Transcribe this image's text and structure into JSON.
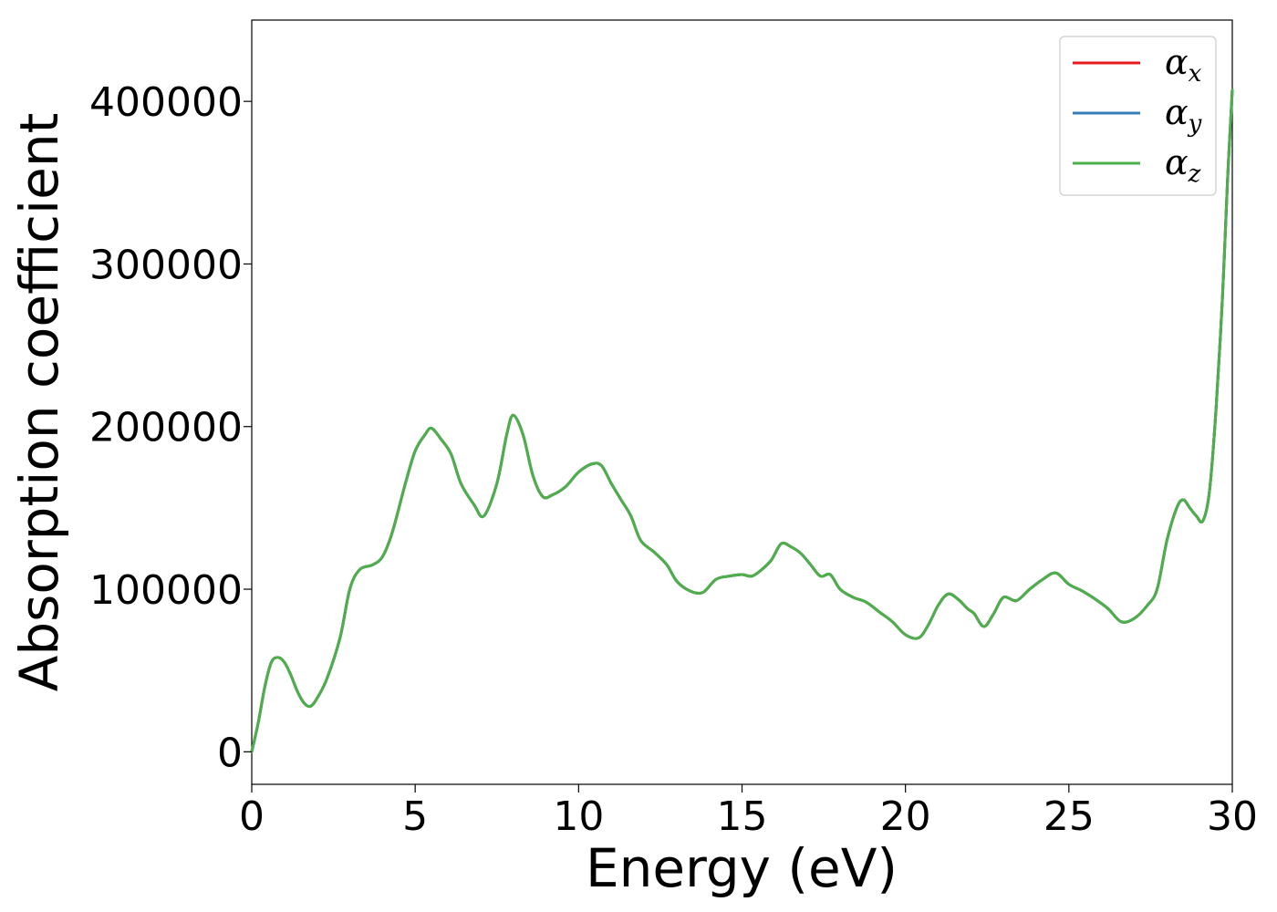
{
  "chart_data": {
    "type": "line",
    "title": "",
    "xlabel": "Energy (eV)",
    "ylabel": "Absorption coefficient",
    "xlim": [
      0,
      30
    ],
    "ylim": [
      -20000,
      450000
    ],
    "xticks": [
      0,
      5,
      10,
      15,
      20,
      25,
      30
    ],
    "yticks": [
      0,
      100000,
      200000,
      300000,
      400000
    ],
    "grid": false,
    "legend_position": "top-right",
    "series": [
      {
        "name": "α",
        "subscript": "x",
        "color": "#e41a1c",
        "points": [
          [
            0,
            0
          ],
          [
            0.2,
            18000
          ],
          [
            0.4,
            40000
          ],
          [
            0.6,
            55000
          ],
          [
            0.8,
            58000
          ],
          [
            1.0,
            55000
          ],
          [
            1.2,
            47000
          ],
          [
            1.4,
            37000
          ],
          [
            1.6,
            30000
          ],
          [
            1.8,
            28000
          ],
          [
            2.0,
            33000
          ],
          [
            2.3,
            45000
          ],
          [
            2.7,
            70000
          ],
          [
            3.0,
            100000
          ],
          [
            3.3,
            112000
          ],
          [
            3.7,
            115000
          ],
          [
            4.0,
            120000
          ],
          [
            4.3,
            135000
          ],
          [
            4.7,
            165000
          ],
          [
            5.0,
            185000
          ],
          [
            5.3,
            195000
          ],
          [
            5.5,
            199000
          ],
          [
            5.8,
            192000
          ],
          [
            6.1,
            183000
          ],
          [
            6.4,
            165000
          ],
          [
            6.8,
            152000
          ],
          [
            7.1,
            145000
          ],
          [
            7.5,
            165000
          ],
          [
            7.8,
            195000
          ],
          [
            8.0,
            207000
          ],
          [
            8.3,
            195000
          ],
          [
            8.6,
            170000
          ],
          [
            8.9,
            157000
          ],
          [
            9.2,
            158000
          ],
          [
            9.6,
            163000
          ],
          [
            10.0,
            172000
          ],
          [
            10.4,
            177000
          ],
          [
            10.7,
            176000
          ],
          [
            11.0,
            165000
          ],
          [
            11.3,
            155000
          ],
          [
            11.6,
            145000
          ],
          [
            11.9,
            130000
          ],
          [
            12.3,
            123000
          ],
          [
            12.7,
            115000
          ],
          [
            13.0,
            105000
          ],
          [
            13.4,
            99000
          ],
          [
            13.8,
            98000
          ],
          [
            14.2,
            106000
          ],
          [
            14.6,
            108000
          ],
          [
            15.0,
            109000
          ],
          [
            15.3,
            108000
          ],
          [
            15.6,
            112000
          ],
          [
            15.9,
            118000
          ],
          [
            16.2,
            128000
          ],
          [
            16.5,
            126000
          ],
          [
            16.8,
            122000
          ],
          [
            17.1,
            115000
          ],
          [
            17.4,
            108000
          ],
          [
            17.7,
            109000
          ],
          [
            18.0,
            100000
          ],
          [
            18.4,
            95000
          ],
          [
            18.8,
            92000
          ],
          [
            19.2,
            86000
          ],
          [
            19.6,
            80000
          ],
          [
            20.0,
            72000
          ],
          [
            20.4,
            70000
          ],
          [
            20.7,
            78000
          ],
          [
            21.0,
            90000
          ],
          [
            21.3,
            97000
          ],
          [
            21.6,
            94000
          ],
          [
            21.9,
            88000
          ],
          [
            22.1,
            85000
          ],
          [
            22.4,
            77000
          ],
          [
            22.7,
            85000
          ],
          [
            23.0,
            95000
          ],
          [
            23.4,
            93000
          ],
          [
            23.8,
            100000
          ],
          [
            24.2,
            106000
          ],
          [
            24.6,
            110000
          ],
          [
            25.0,
            103000
          ],
          [
            25.4,
            99000
          ],
          [
            25.8,
            94000
          ],
          [
            26.2,
            88000
          ],
          [
            26.6,
            80000
          ],
          [
            27.0,
            82000
          ],
          [
            27.4,
            90000
          ],
          [
            27.7,
            100000
          ],
          [
            28.0,
            130000
          ],
          [
            28.3,
            150000
          ],
          [
            28.5,
            155000
          ],
          [
            28.7,
            150000
          ],
          [
            28.9,
            145000
          ],
          [
            29.1,
            142000
          ],
          [
            29.3,
            160000
          ],
          [
            29.5,
            210000
          ],
          [
            29.7,
            280000
          ],
          [
            29.85,
            350000
          ],
          [
            30.0,
            407000
          ]
        ]
      },
      {
        "name": "α",
        "subscript": "y",
        "color": "#377eb8",
        "points": [
          [
            0,
            0
          ],
          [
            0.2,
            18000
          ],
          [
            0.4,
            40000
          ],
          [
            0.6,
            55000
          ],
          [
            0.8,
            58000
          ],
          [
            1.0,
            55000
          ],
          [
            1.2,
            47000
          ],
          [
            1.4,
            37000
          ],
          [
            1.6,
            30000
          ],
          [
            1.8,
            28000
          ],
          [
            2.0,
            33000
          ],
          [
            2.3,
            45000
          ],
          [
            2.7,
            70000
          ],
          [
            3.0,
            100000
          ],
          [
            3.3,
            112000
          ],
          [
            3.7,
            115000
          ],
          [
            4.0,
            120000
          ],
          [
            4.3,
            135000
          ],
          [
            4.7,
            165000
          ],
          [
            5.0,
            185000
          ],
          [
            5.3,
            195000
          ],
          [
            5.5,
            199000
          ],
          [
            5.8,
            192000
          ],
          [
            6.1,
            183000
          ],
          [
            6.4,
            165000
          ],
          [
            6.8,
            152000
          ],
          [
            7.1,
            145000
          ],
          [
            7.5,
            165000
          ],
          [
            7.8,
            195000
          ],
          [
            8.0,
            207000
          ],
          [
            8.3,
            195000
          ],
          [
            8.6,
            170000
          ],
          [
            8.9,
            157000
          ],
          [
            9.2,
            158000
          ],
          [
            9.6,
            163000
          ],
          [
            10.0,
            172000
          ],
          [
            10.4,
            177000
          ],
          [
            10.7,
            176000
          ],
          [
            11.0,
            165000
          ],
          [
            11.3,
            155000
          ],
          [
            11.6,
            145000
          ],
          [
            11.9,
            130000
          ],
          [
            12.3,
            123000
          ],
          [
            12.7,
            115000
          ],
          [
            13.0,
            105000
          ],
          [
            13.4,
            99000
          ],
          [
            13.8,
            98000
          ],
          [
            14.2,
            106000
          ],
          [
            14.6,
            108000
          ],
          [
            15.0,
            109000
          ],
          [
            15.3,
            108000
          ],
          [
            15.6,
            112000
          ],
          [
            15.9,
            118000
          ],
          [
            16.2,
            128000
          ],
          [
            16.5,
            126000
          ],
          [
            16.8,
            122000
          ],
          [
            17.1,
            115000
          ],
          [
            17.4,
            108000
          ],
          [
            17.7,
            109000
          ],
          [
            18.0,
            100000
          ],
          [
            18.4,
            95000
          ],
          [
            18.8,
            92000
          ],
          [
            19.2,
            86000
          ],
          [
            19.6,
            80000
          ],
          [
            20.0,
            72000
          ],
          [
            20.4,
            70000
          ],
          [
            20.7,
            78000
          ],
          [
            21.0,
            90000
          ],
          [
            21.3,
            97000
          ],
          [
            21.6,
            94000
          ],
          [
            21.9,
            88000
          ],
          [
            22.1,
            85000
          ],
          [
            22.4,
            77000
          ],
          [
            22.7,
            85000
          ],
          [
            23.0,
            95000
          ],
          [
            23.4,
            93000
          ],
          [
            23.8,
            100000
          ],
          [
            24.2,
            106000
          ],
          [
            24.6,
            110000
          ],
          [
            25.0,
            103000
          ],
          [
            25.4,
            99000
          ],
          [
            25.8,
            94000
          ],
          [
            26.2,
            88000
          ],
          [
            26.6,
            80000
          ],
          [
            27.0,
            82000
          ],
          [
            27.4,
            90000
          ],
          [
            27.7,
            100000
          ],
          [
            28.0,
            130000
          ],
          [
            28.3,
            150000
          ],
          [
            28.5,
            155000
          ],
          [
            28.7,
            150000
          ],
          [
            28.9,
            145000
          ],
          [
            29.1,
            142000
          ],
          [
            29.3,
            160000
          ],
          [
            29.5,
            210000
          ],
          [
            29.7,
            280000
          ],
          [
            29.85,
            350000
          ],
          [
            30.0,
            407000
          ]
        ]
      },
      {
        "name": "α",
        "subscript": "z",
        "color": "#4daf4a",
        "points": [
          [
            0,
            0
          ],
          [
            0.2,
            18000
          ],
          [
            0.4,
            40000
          ],
          [
            0.6,
            55000
          ],
          [
            0.8,
            58000
          ],
          [
            1.0,
            55000
          ],
          [
            1.2,
            47000
          ],
          [
            1.4,
            37000
          ],
          [
            1.6,
            30000
          ],
          [
            1.8,
            28000
          ],
          [
            2.0,
            33000
          ],
          [
            2.3,
            45000
          ],
          [
            2.7,
            70000
          ],
          [
            3.0,
            100000
          ],
          [
            3.3,
            112000
          ],
          [
            3.7,
            115000
          ],
          [
            4.0,
            120000
          ],
          [
            4.3,
            135000
          ],
          [
            4.7,
            165000
          ],
          [
            5.0,
            185000
          ],
          [
            5.3,
            195000
          ],
          [
            5.5,
            199000
          ],
          [
            5.8,
            192000
          ],
          [
            6.1,
            183000
          ],
          [
            6.4,
            165000
          ],
          [
            6.8,
            152000
          ],
          [
            7.1,
            145000
          ],
          [
            7.5,
            165000
          ],
          [
            7.8,
            195000
          ],
          [
            8.0,
            207000
          ],
          [
            8.3,
            195000
          ],
          [
            8.6,
            170000
          ],
          [
            8.9,
            157000
          ],
          [
            9.2,
            158000
          ],
          [
            9.6,
            163000
          ],
          [
            10.0,
            172000
          ],
          [
            10.4,
            177000
          ],
          [
            10.7,
            176000
          ],
          [
            11.0,
            165000
          ],
          [
            11.3,
            155000
          ],
          [
            11.6,
            145000
          ],
          [
            11.9,
            130000
          ],
          [
            12.3,
            123000
          ],
          [
            12.7,
            115000
          ],
          [
            13.0,
            105000
          ],
          [
            13.4,
            99000
          ],
          [
            13.8,
            98000
          ],
          [
            14.2,
            106000
          ],
          [
            14.6,
            108000
          ],
          [
            15.0,
            109000
          ],
          [
            15.3,
            108000
          ],
          [
            15.6,
            112000
          ],
          [
            15.9,
            118000
          ],
          [
            16.2,
            128000
          ],
          [
            16.5,
            126000
          ],
          [
            16.8,
            122000
          ],
          [
            17.1,
            115000
          ],
          [
            17.4,
            108000
          ],
          [
            17.7,
            109000
          ],
          [
            18.0,
            100000
          ],
          [
            18.4,
            95000
          ],
          [
            18.8,
            92000
          ],
          [
            19.2,
            86000
          ],
          [
            19.6,
            80000
          ],
          [
            20.0,
            72000
          ],
          [
            20.4,
            70000
          ],
          [
            20.7,
            78000
          ],
          [
            21.0,
            90000
          ],
          [
            21.3,
            97000
          ],
          [
            21.6,
            94000
          ],
          [
            21.9,
            88000
          ],
          [
            22.1,
            85000
          ],
          [
            22.4,
            77000
          ],
          [
            22.7,
            85000
          ],
          [
            23.0,
            95000
          ],
          [
            23.4,
            93000
          ],
          [
            23.8,
            100000
          ],
          [
            24.2,
            106000
          ],
          [
            24.6,
            110000
          ],
          [
            25.0,
            103000
          ],
          [
            25.4,
            99000
          ],
          [
            25.8,
            94000
          ],
          [
            26.2,
            88000
          ],
          [
            26.6,
            80000
          ],
          [
            27.0,
            82000
          ],
          [
            27.4,
            90000
          ],
          [
            27.7,
            100000
          ],
          [
            28.0,
            130000
          ],
          [
            28.3,
            150000
          ],
          [
            28.5,
            155000
          ],
          [
            28.7,
            150000
          ],
          [
            28.9,
            145000
          ],
          [
            29.1,
            142000
          ],
          [
            29.3,
            160000
          ],
          [
            29.5,
            210000
          ],
          [
            29.7,
            280000
          ],
          [
            29.85,
            350000
          ],
          [
            30.0,
            407000
          ]
        ]
      }
    ]
  }
}
